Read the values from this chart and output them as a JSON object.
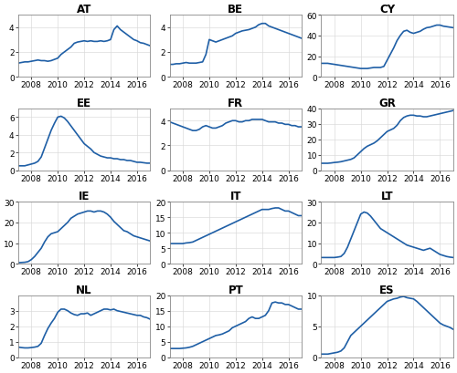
{
  "subplots": [
    {
      "title": "AT",
      "ylim": [
        0,
        5
      ],
      "yticks": [
        0,
        2,
        4
      ],
      "x": [
        2007.0,
        2007.25,
        2007.5,
        2007.75,
        2008.0,
        2008.25,
        2008.5,
        2008.75,
        2009.0,
        2009.25,
        2009.5,
        2009.75,
        2010.0,
        2010.25,
        2010.5,
        2010.75,
        2011.0,
        2011.25,
        2011.5,
        2011.75,
        2012.0,
        2012.25,
        2012.5,
        2012.75,
        2013.0,
        2013.25,
        2013.5,
        2013.75,
        2014.0,
        2014.25,
        2014.5,
        2014.75,
        2015.0,
        2015.25,
        2015.5,
        2015.75,
        2016.0,
        2016.25,
        2016.5,
        2016.75,
        2017.0
      ],
      "y": [
        1.1,
        1.15,
        1.2,
        1.2,
        1.25,
        1.3,
        1.35,
        1.3,
        1.3,
        1.25,
        1.3,
        1.4,
        1.5,
        1.8,
        2.0,
        2.2,
        2.4,
        2.7,
        2.8,
        2.85,
        2.9,
        2.85,
        2.9,
        2.85,
        2.85,
        2.9,
        2.85,
        2.9,
        3.0,
        3.8,
        4.1,
        3.8,
        3.6,
        3.4,
        3.2,
        3.0,
        2.9,
        2.75,
        2.7,
        2.6,
        2.5
      ]
    },
    {
      "title": "BE",
      "ylim": [
        0,
        5
      ],
      "yticks": [
        0,
        2,
        4
      ],
      "x": [
        2007.0,
        2007.25,
        2007.5,
        2007.75,
        2008.0,
        2008.25,
        2008.5,
        2008.75,
        2009.0,
        2009.25,
        2009.5,
        2009.75,
        2010.0,
        2010.25,
        2010.5,
        2010.75,
        2011.0,
        2011.25,
        2011.5,
        2011.75,
        2012.0,
        2012.25,
        2012.5,
        2012.75,
        2013.0,
        2013.25,
        2013.5,
        2013.75,
        2014.0,
        2014.25,
        2014.5,
        2014.75,
        2015.0,
        2015.25,
        2015.5,
        2015.75,
        2016.0,
        2016.25,
        2016.5,
        2016.75,
        2017.0
      ],
      "y": [
        1.0,
        1.0,
        1.05,
        1.05,
        1.1,
        1.15,
        1.1,
        1.1,
        1.1,
        1.15,
        1.2,
        1.8,
        3.0,
        2.9,
        2.8,
        2.9,
        3.0,
        3.1,
        3.2,
        3.3,
        3.5,
        3.6,
        3.7,
        3.75,
        3.8,
        3.9,
        4.0,
        4.2,
        4.3,
        4.3,
        4.1,
        4.0,
        3.9,
        3.8,
        3.7,
        3.6,
        3.5,
        3.4,
        3.3,
        3.2,
        3.1
      ]
    },
    {
      "title": "CY",
      "ylim": [
        0,
        60
      ],
      "yticks": [
        0,
        20,
        40,
        60
      ],
      "x": [
        2007.0,
        2007.25,
        2007.5,
        2007.75,
        2008.0,
        2008.25,
        2008.5,
        2008.75,
        2009.0,
        2009.25,
        2009.5,
        2009.75,
        2010.0,
        2010.25,
        2010.5,
        2010.75,
        2011.0,
        2011.25,
        2011.5,
        2011.75,
        2012.0,
        2012.25,
        2012.5,
        2012.75,
        2013.0,
        2013.25,
        2013.5,
        2013.75,
        2014.0,
        2014.25,
        2014.5,
        2014.75,
        2015.0,
        2015.25,
        2015.5,
        2015.75,
        2016.0,
        2016.25,
        2016.5,
        2016.75,
        2017.0
      ],
      "y": [
        13.0,
        13.0,
        13.0,
        12.5,
        12.0,
        11.5,
        11.0,
        10.5,
        10.0,
        9.5,
        9.0,
        8.5,
        8.0,
        8.0,
        8.0,
        8.5,
        9.0,
        9.0,
        9.0,
        10.0,
        16.0,
        22.0,
        28.0,
        35.0,
        40.0,
        44.0,
        45.0,
        43.0,
        42.0,
        43.0,
        44.0,
        46.0,
        47.5,
        48.0,
        49.0,
        50.0,
        50.0,
        49.0,
        48.5,
        48.0,
        47.5
      ]
    },
    {
      "title": "EE",
      "ylim": [
        0,
        7
      ],
      "yticks": [
        0,
        2,
        4,
        6
      ],
      "x": [
        2007.0,
        2007.25,
        2007.5,
        2007.75,
        2008.0,
        2008.25,
        2008.5,
        2008.75,
        2009.0,
        2009.25,
        2009.5,
        2009.75,
        2010.0,
        2010.25,
        2010.5,
        2010.75,
        2011.0,
        2011.25,
        2011.5,
        2011.75,
        2012.0,
        2012.25,
        2012.5,
        2012.75,
        2013.0,
        2013.25,
        2013.5,
        2013.75,
        2014.0,
        2014.25,
        2014.5,
        2014.75,
        2015.0,
        2015.25,
        2015.5,
        2015.75,
        2016.0,
        2016.25,
        2016.5,
        2016.75,
        2017.0
      ],
      "y": [
        0.5,
        0.5,
        0.5,
        0.6,
        0.7,
        0.8,
        1.0,
        1.5,
        2.5,
        3.5,
        4.5,
        5.3,
        6.0,
        6.1,
        5.9,
        5.5,
        5.0,
        4.5,
        4.0,
        3.5,
        3.0,
        2.7,
        2.4,
        2.0,
        1.8,
        1.6,
        1.5,
        1.4,
        1.4,
        1.3,
        1.3,
        1.2,
        1.2,
        1.1,
        1.1,
        1.0,
        0.9,
        0.9,
        0.85,
        0.8,
        0.8
      ]
    },
    {
      "title": "FR",
      "ylim": [
        0,
        5
      ],
      "yticks": [
        0,
        2,
        4
      ],
      "x": [
        2007.0,
        2007.25,
        2007.5,
        2007.75,
        2008.0,
        2008.25,
        2008.5,
        2008.75,
        2009.0,
        2009.25,
        2009.5,
        2009.75,
        2010.0,
        2010.25,
        2010.5,
        2010.75,
        2011.0,
        2011.25,
        2011.5,
        2011.75,
        2012.0,
        2012.25,
        2012.5,
        2012.75,
        2013.0,
        2013.25,
        2013.5,
        2013.75,
        2014.0,
        2014.25,
        2014.5,
        2014.75,
        2015.0,
        2015.25,
        2015.5,
        2015.75,
        2016.0,
        2016.25,
        2016.5,
        2016.75,
        2017.0
      ],
      "y": [
        3.9,
        3.8,
        3.7,
        3.6,
        3.5,
        3.4,
        3.3,
        3.2,
        3.2,
        3.3,
        3.5,
        3.6,
        3.5,
        3.4,
        3.4,
        3.5,
        3.6,
        3.8,
        3.9,
        4.0,
        4.0,
        3.9,
        3.9,
        4.0,
        4.0,
        4.1,
        4.1,
        4.1,
        4.1,
        4.0,
        3.9,
        3.9,
        3.9,
        3.8,
        3.8,
        3.7,
        3.7,
        3.6,
        3.6,
        3.5,
        3.5
      ]
    },
    {
      "title": "GR",
      "ylim": [
        0,
        40
      ],
      "yticks": [
        0,
        10,
        20,
        30,
        40
      ],
      "x": [
        2007.0,
        2007.25,
        2007.5,
        2007.75,
        2008.0,
        2008.25,
        2008.5,
        2008.75,
        2009.0,
        2009.25,
        2009.5,
        2009.75,
        2010.0,
        2010.25,
        2010.5,
        2010.75,
        2011.0,
        2011.25,
        2011.5,
        2011.75,
        2012.0,
        2012.25,
        2012.5,
        2012.75,
        2013.0,
        2013.25,
        2013.5,
        2013.75,
        2014.0,
        2014.25,
        2014.5,
        2014.75,
        2015.0,
        2015.25,
        2015.5,
        2015.75,
        2016.0,
        2016.25,
        2016.5,
        2016.75,
        2017.0
      ],
      "y": [
        4.5,
        4.5,
        4.5,
        4.7,
        5.0,
        5.2,
        5.5,
        6.0,
        6.5,
        7.0,
        8.0,
        10.0,
        12.0,
        14.0,
        15.5,
        16.5,
        17.5,
        19.0,
        21.0,
        23.0,
        25.0,
        26.0,
        27.0,
        29.0,
        32.0,
        34.0,
        35.0,
        35.5,
        35.5,
        35.0,
        35.0,
        34.5,
        34.5,
        35.0,
        35.5,
        36.0,
        36.5,
        37.0,
        37.5,
        38.0,
        38.5
      ]
    },
    {
      "title": "IE",
      "ylim": [
        0,
        30
      ],
      "yticks": [
        0,
        10,
        20,
        30
      ],
      "x": [
        2007.0,
        2007.25,
        2007.5,
        2007.75,
        2008.0,
        2008.25,
        2008.5,
        2008.75,
        2009.0,
        2009.25,
        2009.5,
        2009.75,
        2010.0,
        2010.25,
        2010.5,
        2010.75,
        2011.0,
        2011.25,
        2011.5,
        2011.75,
        2012.0,
        2012.25,
        2012.5,
        2012.75,
        2013.0,
        2013.25,
        2013.5,
        2013.75,
        2014.0,
        2014.25,
        2014.5,
        2014.75,
        2015.0,
        2015.25,
        2015.5,
        2015.75,
        2016.0,
        2016.25,
        2016.5,
        2016.75,
        2017.0
      ],
      "y": [
        0.5,
        0.6,
        0.7,
        1.0,
        2.0,
        3.5,
        5.5,
        7.5,
        10.5,
        13.0,
        14.5,
        15.0,
        15.5,
        17.0,
        18.5,
        20.0,
        22.0,
        23.0,
        24.0,
        24.5,
        25.0,
        25.5,
        25.5,
        25.0,
        25.5,
        25.5,
        25.0,
        24.0,
        22.5,
        20.5,
        19.0,
        17.5,
        16.0,
        15.5,
        14.5,
        13.5,
        13.0,
        12.5,
        12.0,
        11.5,
        11.0
      ]
    },
    {
      "title": "IT",
      "ylim": [
        0,
        20
      ],
      "yticks": [
        0,
        5,
        10,
        15,
        20
      ],
      "x": [
        2007.0,
        2007.25,
        2007.5,
        2007.75,
        2008.0,
        2008.25,
        2008.5,
        2008.75,
        2009.0,
        2009.25,
        2009.5,
        2009.75,
        2010.0,
        2010.25,
        2010.5,
        2010.75,
        2011.0,
        2011.25,
        2011.5,
        2011.75,
        2012.0,
        2012.25,
        2012.5,
        2012.75,
        2013.0,
        2013.25,
        2013.5,
        2013.75,
        2014.0,
        2014.25,
        2014.5,
        2014.75,
        2015.0,
        2015.25,
        2015.5,
        2015.75,
        2016.0,
        2016.25,
        2016.5,
        2016.75,
        2017.0
      ],
      "y": [
        6.5,
        6.5,
        6.5,
        6.5,
        6.5,
        6.7,
        6.8,
        7.0,
        7.5,
        8.0,
        8.5,
        9.0,
        9.5,
        10.0,
        10.5,
        11.0,
        11.5,
        12.0,
        12.5,
        13.0,
        13.5,
        14.0,
        14.5,
        15.0,
        15.5,
        16.0,
        16.5,
        17.0,
        17.5,
        17.5,
        17.5,
        17.8,
        18.0,
        18.0,
        17.5,
        17.0,
        17.0,
        16.5,
        16.0,
        15.5,
        15.5
      ]
    },
    {
      "title": "LT",
      "ylim": [
        0,
        30
      ],
      "yticks": [
        0,
        10,
        20,
        30
      ],
      "x": [
        2007.0,
        2007.25,
        2007.5,
        2007.75,
        2008.0,
        2008.25,
        2008.5,
        2008.75,
        2009.0,
        2009.25,
        2009.5,
        2009.75,
        2010.0,
        2010.25,
        2010.5,
        2010.75,
        2011.0,
        2011.25,
        2011.5,
        2011.75,
        2012.0,
        2012.25,
        2012.5,
        2012.75,
        2013.0,
        2013.25,
        2013.5,
        2013.75,
        2014.0,
        2014.25,
        2014.5,
        2014.75,
        2015.0,
        2015.25,
        2015.5,
        2015.75,
        2016.0,
        2016.25,
        2016.5,
        2016.75,
        2017.0
      ],
      "y": [
        3.0,
        3.0,
        3.0,
        3.0,
        3.0,
        3.2,
        3.5,
        5.0,
        8.0,
        12.0,
        16.0,
        20.0,
        24.0,
        25.0,
        24.5,
        23.0,
        21.0,
        19.0,
        17.0,
        16.0,
        15.0,
        14.0,
        13.0,
        12.0,
        11.0,
        10.0,
        9.0,
        8.5,
        8.0,
        7.5,
        7.0,
        6.5,
        7.0,
        7.5,
        6.5,
        5.5,
        4.5,
        4.0,
        3.5,
        3.2,
        3.0
      ]
    },
    {
      "title": "NL",
      "ylim": [
        0,
        4
      ],
      "yticks": [
        0,
        1,
        2,
        3
      ],
      "x": [
        2007.0,
        2007.25,
        2007.5,
        2007.75,
        2008.0,
        2008.25,
        2008.5,
        2008.75,
        2009.0,
        2009.25,
        2009.5,
        2009.75,
        2010.0,
        2010.25,
        2010.5,
        2010.75,
        2011.0,
        2011.25,
        2011.5,
        2011.75,
        2012.0,
        2012.25,
        2012.5,
        2012.75,
        2013.0,
        2013.25,
        2013.5,
        2013.75,
        2014.0,
        2014.25,
        2014.5,
        2014.75,
        2015.0,
        2015.25,
        2015.5,
        2015.75,
        2016.0,
        2016.25,
        2016.5,
        2016.75,
        2017.0
      ],
      "y": [
        0.65,
        0.62,
        0.6,
        0.6,
        0.62,
        0.65,
        0.7,
        0.9,
        1.4,
        1.85,
        2.2,
        2.5,
        2.9,
        3.1,
        3.1,
        3.0,
        2.85,
        2.75,
        2.7,
        2.8,
        2.8,
        2.85,
        2.7,
        2.8,
        2.9,
        3.0,
        3.1,
        3.1,
        3.05,
        3.1,
        3.0,
        2.95,
        2.9,
        2.85,
        2.8,
        2.75,
        2.7,
        2.7,
        2.6,
        2.55,
        2.45
      ]
    },
    {
      "title": "PT",
      "ylim": [
        0,
        20
      ],
      "yticks": [
        0,
        5,
        10,
        15,
        20
      ],
      "x": [
        2007.0,
        2007.25,
        2007.5,
        2007.75,
        2008.0,
        2008.25,
        2008.5,
        2008.75,
        2009.0,
        2009.25,
        2009.5,
        2009.75,
        2010.0,
        2010.25,
        2010.5,
        2010.75,
        2011.0,
        2011.25,
        2011.5,
        2011.75,
        2012.0,
        2012.25,
        2012.5,
        2012.75,
        2013.0,
        2013.25,
        2013.5,
        2013.75,
        2014.0,
        2014.25,
        2014.5,
        2014.75,
        2015.0,
        2015.25,
        2015.5,
        2015.75,
        2016.0,
        2016.25,
        2016.5,
        2016.75,
        2017.0
      ],
      "y": [
        2.8,
        2.8,
        2.8,
        2.8,
        2.9,
        3.0,
        3.2,
        3.5,
        4.0,
        4.5,
        5.0,
        5.5,
        6.0,
        6.5,
        7.0,
        7.2,
        7.5,
        8.0,
        8.5,
        9.5,
        10.0,
        10.5,
        11.0,
        11.5,
        12.5,
        13.0,
        12.5,
        12.5,
        13.0,
        13.5,
        15.0,
        17.5,
        17.8,
        17.5,
        17.5,
        17.0,
        17.0,
        16.5,
        16.0,
        15.5,
        15.5
      ]
    },
    {
      "title": "ES",
      "ylim": [
        0,
        10
      ],
      "yticks": [
        0,
        5,
        10
      ],
      "x": [
        2007.0,
        2007.25,
        2007.5,
        2007.75,
        2008.0,
        2008.25,
        2008.5,
        2008.75,
        2009.0,
        2009.25,
        2009.5,
        2009.75,
        2010.0,
        2010.25,
        2010.5,
        2010.75,
        2011.0,
        2011.25,
        2011.5,
        2011.75,
        2012.0,
        2012.25,
        2012.5,
        2012.75,
        2013.0,
        2013.25,
        2013.5,
        2013.75,
        2014.0,
        2014.25,
        2014.5,
        2014.75,
        2015.0,
        2015.25,
        2015.5,
        2015.75,
        2016.0,
        2016.25,
        2016.5,
        2016.75,
        2017.0
      ],
      "y": [
        0.5,
        0.5,
        0.5,
        0.6,
        0.7,
        0.8,
        1.0,
        1.5,
        2.5,
        3.5,
        4.0,
        4.5,
        5.0,
        5.5,
        6.0,
        6.5,
        7.0,
        7.5,
        8.0,
        8.5,
        9.0,
        9.2,
        9.4,
        9.5,
        9.7,
        9.8,
        9.6,
        9.5,
        9.4,
        9.0,
        8.5,
        8.0,
        7.5,
        7.0,
        6.5,
        6.0,
        5.5,
        5.2,
        5.0,
        4.8,
        4.5
      ]
    }
  ],
  "xticks": [
    2008,
    2010,
    2012,
    2014,
    2016
  ],
  "xticklabels": [
    "2008",
    "2010",
    "2012",
    "2014",
    "2016"
  ],
  "xlim": [
    2007,
    2017
  ],
  "line_color": "#1f5fa6",
  "line_width": 1.2,
  "background_color": "#ffffff",
  "grid_color": "#d8d8d8",
  "title_fontsize": 8.5,
  "tick_fontsize": 6.5,
  "fig_width": 5.0,
  "fig_height": 4.1,
  "dpi": 100
}
